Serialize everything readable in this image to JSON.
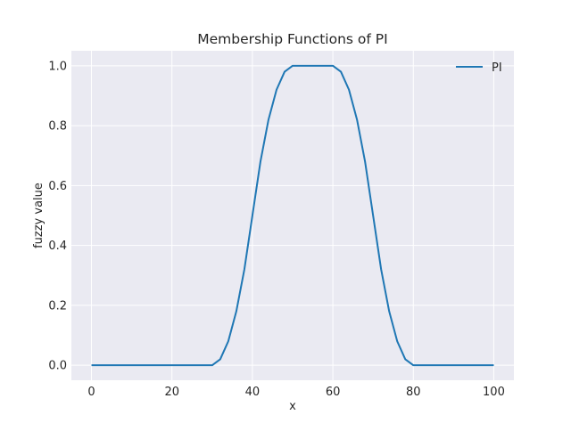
{
  "chart_data": {
    "type": "line",
    "title": "Membership Functions of PI",
    "xlabel": "x",
    "ylabel": "fuzzy value",
    "xlim": [
      -5,
      105
    ],
    "ylim": [
      -0.05,
      1.05
    ],
    "xticks": [
      0,
      20,
      40,
      60,
      80,
      100
    ],
    "yticks": [
      0.0,
      0.2,
      0.4,
      0.6,
      0.8,
      1.0
    ],
    "x_tick_labels": [
      "0",
      "20",
      "40",
      "60",
      "80",
      "100"
    ],
    "y_tick_labels": [
      "0.0",
      "0.2",
      "0.4",
      "0.6",
      "0.8",
      "1.0"
    ],
    "grid": true,
    "legend_position": "top-right",
    "series": [
      {
        "name": "PI",
        "color": "#1f77b4",
        "x": [
          0,
          5,
          10,
          15,
          20,
          25,
          30,
          32,
          34,
          36,
          38,
          40,
          42,
          44,
          46,
          48,
          50,
          52,
          54,
          56,
          58,
          60,
          62,
          64,
          66,
          68,
          70,
          72,
          74,
          76,
          78,
          80,
          85,
          90,
          95,
          100
        ],
        "y": [
          0,
          0,
          0,
          0,
          0,
          0,
          0,
          0.02,
          0.08,
          0.18,
          0.32,
          0.5,
          0.68,
          0.82,
          0.92,
          0.98,
          1,
          1,
          1,
          1,
          1,
          1,
          0.98,
          0.92,
          0.82,
          0.68,
          0.5,
          0.32,
          0.18,
          0.08,
          0.02,
          0,
          0,
          0,
          0,
          0
        ]
      }
    ]
  }
}
